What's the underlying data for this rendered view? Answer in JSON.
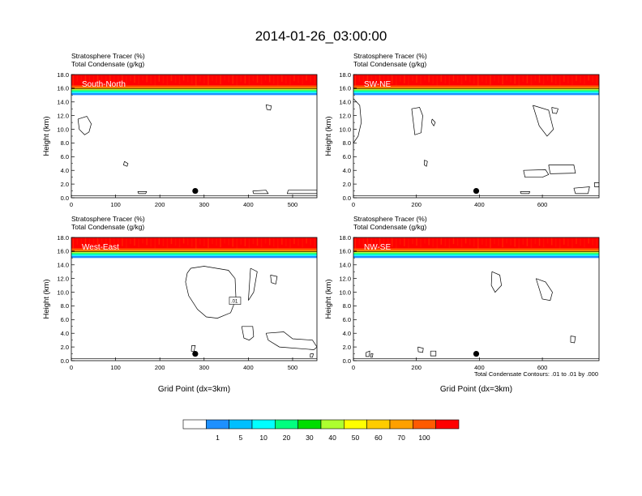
{
  "figure_title": "2014-01-26_03:00:00",
  "panel_header": {
    "line1": "Stratosphere Tracer   (%)",
    "line2": "Total Condensate   (g/kg)"
  },
  "colorbar": {
    "labels": [
      "1",
      "5",
      "10",
      "20",
      "30",
      "40",
      "50",
      "60",
      "70",
      "100"
    ],
    "colors": [
      "#ffffff",
      "#1e90ff",
      "#00bfff",
      "#00ffff",
      "#00ff7f",
      "#00dd00",
      "#adff2f",
      "#ffff00",
      "#ffcc00",
      "#ffa000",
      "#ff5a00",
      "#ff0000"
    ]
  },
  "footnote": "Total Condensate Contours: .01 to .01 by .000",
  "chart_data": [
    {
      "type": "heatmap",
      "label": "South-North",
      "ylabel": "Height (km)",
      "xlabel": "",
      "xlim": [
        0,
        555
      ],
      "ylim": [
        0,
        18
      ],
      "xticks": [
        "0",
        "100",
        "200",
        "300",
        "400",
        "500"
      ],
      "yticks": [
        "0.0",
        "2.0",
        "4.0",
        "6.0",
        "8.0",
        "10.0",
        "12.0",
        "14.0",
        "16.0",
        "18.0"
      ],
      "marker": {
        "x": 280,
        "y": 1.0
      },
      "tropopause_km": 15.8,
      "clouds": [
        {
          "x": [
            15,
            35,
            45,
            40,
            30,
            18,
            15
          ],
          "y": [
            11.5,
            11.9,
            10.8,
            9.6,
            9.2,
            10.0,
            11.5
          ]
        },
        {
          "x": [
            120,
            128,
            126,
            118,
            120
          ],
          "y": [
            5.3,
            5.0,
            4.6,
            4.8,
            5.3
          ]
        },
        {
          "x": [
            440,
            452,
            450,
            442,
            440
          ],
          "y": [
            13.6,
            13.4,
            12.8,
            12.9,
            13.6
          ]
        },
        {
          "x": [
            150,
            170,
            168,
            152,
            150
          ],
          "y": [
            0.9,
            0.9,
            0.6,
            0.6,
            0.9
          ]
        },
        {
          "x": [
            410,
            440,
            445,
            412,
            410
          ],
          "y": [
            1.0,
            1.1,
            0.6,
            0.6,
            1.0
          ]
        },
        {
          "x": [
            490,
            555,
            555,
            488,
            490
          ],
          "y": [
            1.1,
            1.1,
            0.6,
            0.6,
            1.1
          ]
        }
      ]
    },
    {
      "type": "heatmap",
      "label": "SW-NE",
      "ylabel": "Height (km)",
      "xlabel": "",
      "xlim": [
        0,
        780
      ],
      "ylim": [
        0,
        18
      ],
      "xticks": [
        "0",
        "200",
        "400",
        "600"
      ],
      "yticks": [
        "0.0",
        "2.0",
        "4.0",
        "6.0",
        "8.0",
        "10.0",
        "12.0",
        "14.0",
        "16.0",
        "18.0"
      ],
      "marker": {
        "x": 390,
        "y": 1.0
      },
      "tropopause_km": 15.8,
      "clouds": [
        {
          "x": [
            0,
            20,
            25,
            15,
            0
          ],
          "y": [
            14.5,
            13.5,
            11.0,
            9.0,
            8.0
          ]
        },
        {
          "x": [
            185,
            210,
            220,
            215,
            195,
            185
          ],
          "y": [
            13.0,
            13.2,
            12.0,
            9.5,
            9.2,
            13.0
          ]
        },
        {
          "x": [
            250,
            260,
            255,
            248,
            250
          ],
          "y": [
            11.5,
            11.0,
            10.5,
            11.0,
            11.5
          ]
        },
        {
          "x": [
            225,
            235,
            232,
            225,
            225
          ],
          "y": [
            5.5,
            5.3,
            4.6,
            4.8,
            5.5
          ]
        },
        {
          "x": [
            570,
            620,
            635,
            615,
            590,
            570
          ],
          "y": [
            13.5,
            12.8,
            10.0,
            9.0,
            10.5,
            13.5
          ]
        },
        {
          "x": [
            630,
            650,
            645,
            632,
            630
          ],
          "y": [
            13.2,
            13.0,
            12.3,
            12.4,
            13.2
          ]
        },
        {
          "x": [
            540,
            610,
            620,
            600,
            545,
            540
          ],
          "y": [
            4.0,
            4.1,
            3.4,
            3.0,
            3.0,
            4.0
          ]
        },
        {
          "x": [
            620,
            700,
            705,
            625,
            620
          ],
          "y": [
            4.8,
            4.8,
            3.6,
            3.5,
            4.8
          ]
        },
        {
          "x": [
            530,
            560,
            558,
            532,
            530
          ],
          "y": [
            0.9,
            0.9,
            0.6,
            0.6,
            0.9
          ]
        },
        {
          "x": [
            700,
            750,
            745,
            705,
            700
          ],
          "y": [
            1.4,
            1.6,
            0.6,
            0.6,
            1.4
          ]
        },
        {
          "x": [
            765,
            780,
            780,
            766,
            765
          ],
          "y": [
            2.2,
            2.2,
            1.6,
            1.6,
            2.2
          ]
        }
      ]
    },
    {
      "type": "heatmap",
      "label": "West-East",
      "ylabel": "Height (km)",
      "xlabel": "Grid Point (dx=3km)",
      "xlim": [
        0,
        555
      ],
      "ylim": [
        0,
        18
      ],
      "xticks": [
        "0",
        "100",
        "200",
        "300",
        "400",
        "500"
      ],
      "yticks": [
        "0.0",
        "2.0",
        "4.0",
        "6.0",
        "8.0",
        "10.0",
        "12.0",
        "14.0",
        "16.0",
        "18.0"
      ],
      "marker": {
        "x": 280,
        "y": 1.0
      },
      "tropopause_km": 15.8,
      "box_label": ".01",
      "clouds": [
        {
          "x": [
            270,
            300,
            355,
            370,
            372,
            360,
            330,
            305,
            285,
            265,
            258,
            262,
            270
          ],
          "y": [
            13.5,
            13.8,
            13.2,
            12.0,
            9.0,
            7.0,
            6.2,
            6.4,
            7.5,
            9.5,
            11.5,
            12.8,
            13.5
          ]
        },
        {
          "x": [
            405,
            420,
            412,
            400,
            405
          ],
          "y": [
            13.5,
            13.0,
            10.0,
            8.8,
            13.5
          ]
        },
        {
          "x": [
            450,
            465,
            462,
            452,
            450
          ],
          "y": [
            12.5,
            12.3,
            11.2,
            11.4,
            12.5
          ]
        },
        {
          "x": [
            385,
            410,
            412,
            402,
            390,
            385
          ],
          "y": [
            5.0,
            5.0,
            3.5,
            3.0,
            3.3,
            5.0
          ]
        },
        {
          "x": [
            440,
            480,
            500,
            545,
            555,
            548,
            470,
            445,
            440
          ],
          "y": [
            4.0,
            4.2,
            3.2,
            3.0,
            2.0,
            1.6,
            2.0,
            3.0,
            4.0
          ]
        },
        {
          "x": [
            272,
            280,
            277,
            271,
            272
          ],
          "y": [
            2.2,
            2.2,
            1.3,
            1.4,
            2.2
          ]
        },
        {
          "x": [
            540,
            547,
            545,
            540,
            540
          ],
          "y": [
            1.0,
            1.0,
            0.5,
            0.5,
            1.0
          ]
        }
      ]
    },
    {
      "type": "heatmap",
      "label": "NW-SE",
      "ylabel": "Height (km)",
      "xlabel": "Grid Point (dx=3km)",
      "xlim": [
        0,
        780
      ],
      "ylim": [
        0,
        18
      ],
      "xticks": [
        "0",
        "200",
        "400",
        "600"
      ],
      "yticks": [
        "0.0",
        "2.0",
        "4.0",
        "6.0",
        "8.0",
        "10.0",
        "12.0",
        "14.0",
        "16.0",
        "18.0"
      ],
      "marker": {
        "x": 390,
        "y": 1.0
      },
      "tropopause_km": 15.8,
      "clouds": [
        {
          "x": [
            440,
            465,
            470,
            450,
            438,
            440
          ],
          "y": [
            13.0,
            12.5,
            11.0,
            10.0,
            11.0,
            13.0
          ]
        },
        {
          "x": [
            580,
            610,
            632,
            625,
            600,
            580
          ],
          "y": [
            12.0,
            11.5,
            10.0,
            8.8,
            9.0,
            12.0
          ]
        },
        {
          "x": [
            690,
            705,
            702,
            690,
            690
          ],
          "y": [
            3.6,
            3.5,
            2.6,
            2.7,
            3.6
          ]
        },
        {
          "x": [
            205,
            222,
            220,
            206,
            205
          ],
          "y": [
            2.0,
            1.8,
            1.2,
            1.3,
            2.0
          ]
        },
        {
          "x": [
            245,
            262,
            262,
            245,
            245
          ],
          "y": [
            1.4,
            1.4,
            0.7,
            0.7,
            1.4
          ]
        },
        {
          "x": [
            40,
            52,
            50,
            40,
            40
          ],
          "y": [
            1.2,
            1.4,
            0.6,
            0.6,
            1.2
          ]
        },
        {
          "x": [
            55,
            62,
            60,
            55,
            55
          ],
          "y": [
            1.0,
            1.0,
            0.5,
            0.5,
            1.0
          ]
        }
      ]
    }
  ]
}
